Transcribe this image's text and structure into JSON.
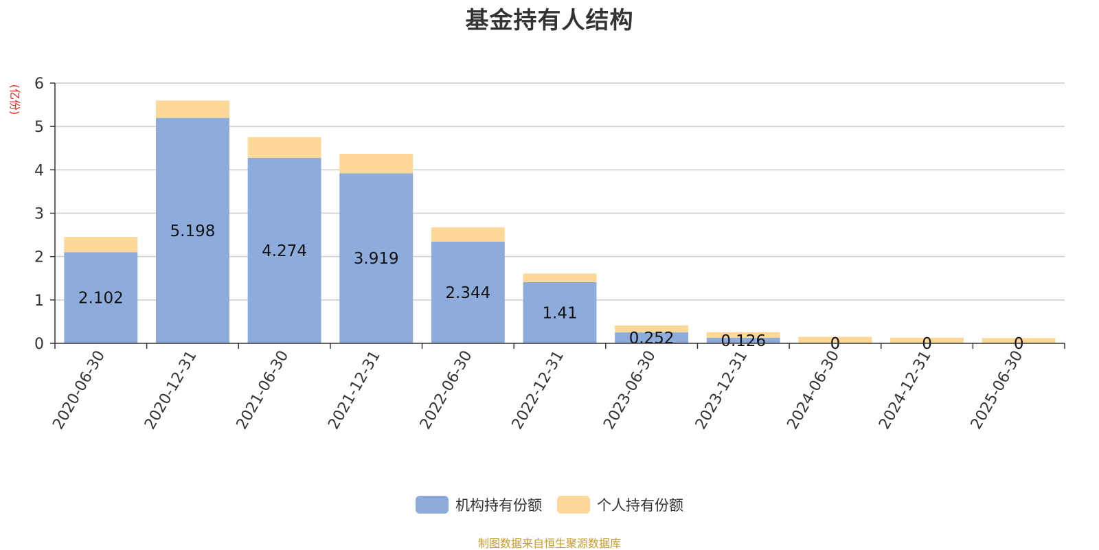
{
  "chart_data": {
    "type": "bar",
    "stacked": true,
    "title": "基金持有人结构",
    "ylabel": "亿份",
    "ylabel_display": "(亿份)",
    "ylim": [
      0,
      6
    ],
    "yticks": [
      "0",
      "1",
      "2",
      "3",
      "4",
      "5",
      "6"
    ],
    "grid": true,
    "legend_position": "bottom-center",
    "categories": [
      "2020-06-30",
      "2020-12-31",
      "2021-06-30",
      "2021-12-31",
      "2022-06-30",
      "2022-12-31",
      "2023-06-30",
      "2023-12-31",
      "2024-06-30",
      "2024-12-31",
      "2025-06-30"
    ],
    "series": [
      {
        "name": "机构持有份额",
        "color": "#8dacdb",
        "values": [
          2.102,
          5.198,
          4.274,
          3.919,
          2.344,
          1.41,
          0.252,
          0.126,
          0,
          0,
          0
        ],
        "labels": [
          "2.102",
          "5.198",
          "4.274",
          "3.919",
          "2.344",
          "1.41",
          "0.252",
          "0.126",
          "0",
          "0",
          "0"
        ]
      },
      {
        "name": "个人持有份额",
        "color": "#fed898",
        "values": [
          0.35,
          0.4,
          0.48,
          0.45,
          0.33,
          0.2,
          0.16,
          0.13,
          0.15,
          0.13,
          0.12
        ]
      }
    ]
  },
  "source_note": "制图数据来自恒生聚源数据库",
  "colors": {
    "title": "#333333",
    "axis_unit": "#e8211f",
    "source_note": "#c79a2c",
    "grid": "#cccccc",
    "axis": "#333333"
  }
}
